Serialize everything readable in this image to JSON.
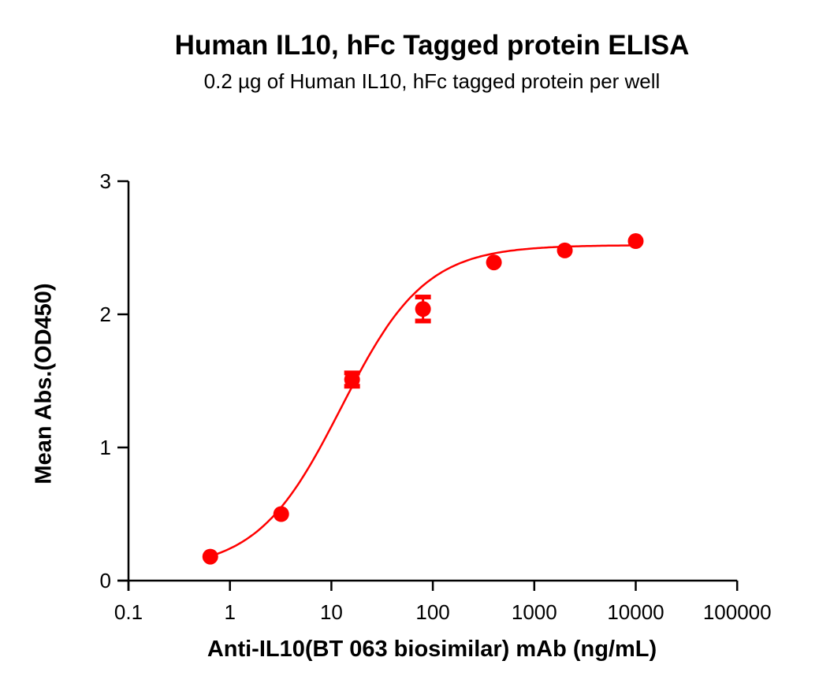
{
  "chart_data": {
    "type": "scatter",
    "title": "Human IL10, hFc Tagged protein ELISA",
    "subtitle": "0.2 µg of Human IL10, hFc tagged protein per well",
    "xlabel": "Anti-IL10(BT 063 biosimilar) mAb (ng/mL)",
    "ylabel": "Mean Abs.(OD450)",
    "xscale": "log",
    "xlim": [
      0.1,
      100000
    ],
    "ylim": [
      0,
      3
    ],
    "x_ticks": [
      "0.1",
      "1",
      "10",
      "100",
      "1000",
      "10000",
      "100000"
    ],
    "y_ticks": [
      "0",
      "1",
      "2",
      "3"
    ],
    "grid": false,
    "legend": null,
    "color": "#ff0000",
    "series": [
      {
        "name": "Human IL10, hFc",
        "x": [
          0.64,
          3.2,
          16,
          80,
          400,
          2000,
          10000
        ],
        "y": [
          0.18,
          0.5,
          1.51,
          2.04,
          2.39,
          2.48,
          2.55
        ],
        "error": [
          0.01,
          0.01,
          0.05,
          0.09,
          0.02,
          0.02,
          0.02
        ],
        "fit": "4PL sigmoidal curve"
      }
    ]
  }
}
